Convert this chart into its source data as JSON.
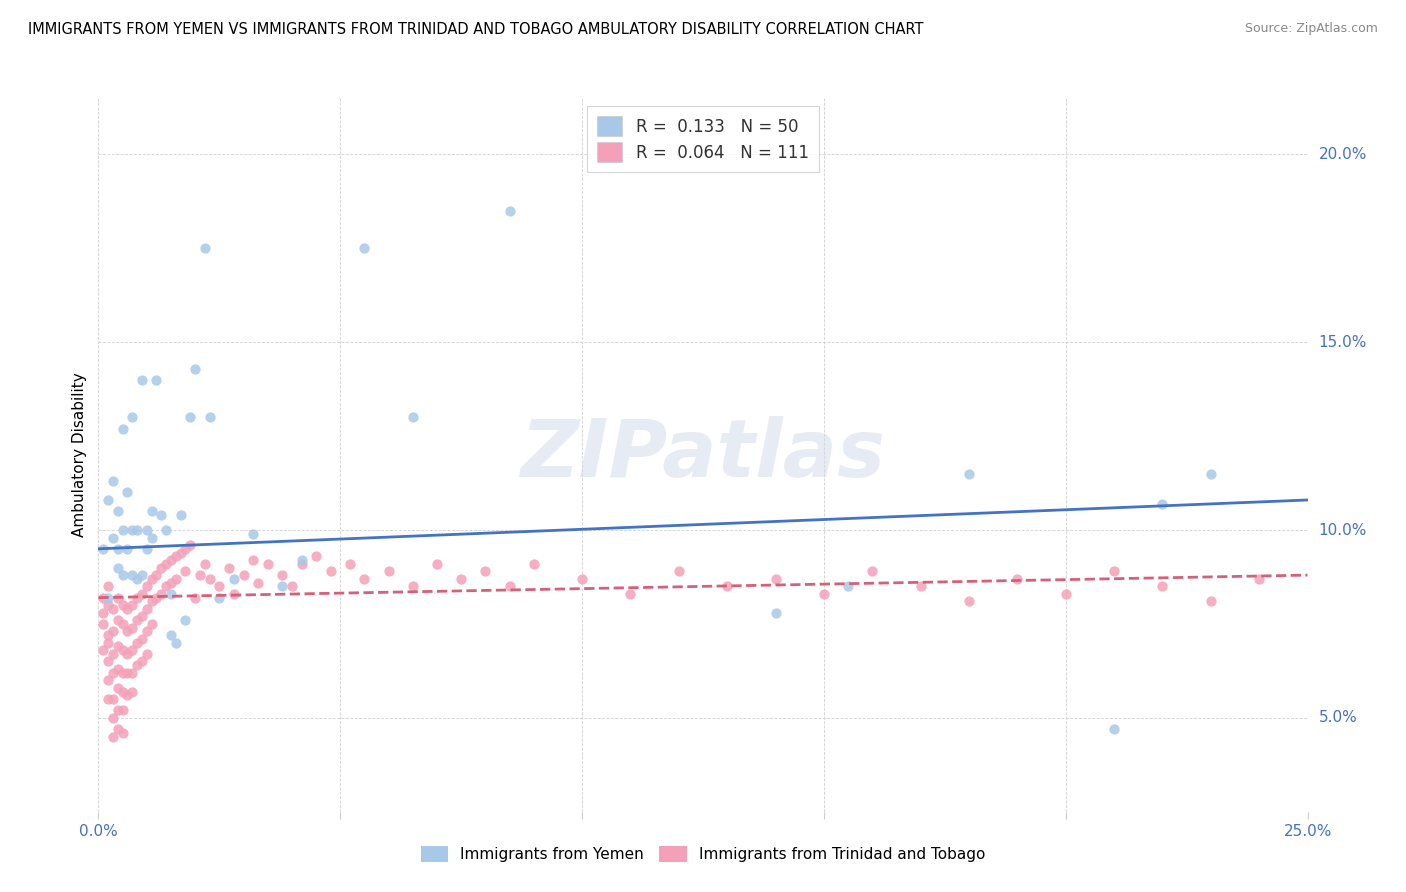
{
  "title": "IMMIGRANTS FROM YEMEN VS IMMIGRANTS FROM TRINIDAD AND TOBAGO AMBULATORY DISABILITY CORRELATION CHART",
  "source": "Source: ZipAtlas.com",
  "ylabel": "Ambulatory Disability",
  "xlim": [
    0.0,
    0.25
  ],
  "ylim": [
    0.025,
    0.215
  ],
  "legend_r1": "R =  0.133",
  "legend_n1": "N = 50",
  "legend_r2": "R =  0.064",
  "legend_n2": "N = 111",
  "color_blue": "#a8c8e8",
  "color_pink": "#f4a0b8",
  "line_blue": "#4472c4",
  "line_pink": "#d4607a",
  "watermark": "ZIPatlas",
  "yemen_x": [
    0.001,
    0.002,
    0.002,
    0.003,
    0.003,
    0.004,
    0.004,
    0.004,
    0.005,
    0.005,
    0.005,
    0.006,
    0.006,
    0.007,
    0.007,
    0.007,
    0.008,
    0.008,
    0.009,
    0.009,
    0.01,
    0.01,
    0.011,
    0.011,
    0.012,
    0.013,
    0.014,
    0.015,
    0.015,
    0.016,
    0.017,
    0.018,
    0.019,
    0.02,
    0.022,
    0.023,
    0.025,
    0.028,
    0.032,
    0.038,
    0.042,
    0.055,
    0.065,
    0.085,
    0.14,
    0.155,
    0.18,
    0.21,
    0.22,
    0.23
  ],
  "yemen_y": [
    0.095,
    0.082,
    0.108,
    0.098,
    0.113,
    0.09,
    0.105,
    0.095,
    0.088,
    0.1,
    0.127,
    0.095,
    0.11,
    0.13,
    0.088,
    0.1,
    0.087,
    0.1,
    0.14,
    0.088,
    0.095,
    0.1,
    0.098,
    0.105,
    0.14,
    0.104,
    0.1,
    0.072,
    0.083,
    0.07,
    0.104,
    0.076,
    0.13,
    0.143,
    0.175,
    0.13,
    0.082,
    0.087,
    0.099,
    0.085,
    0.092,
    0.175,
    0.13,
    0.185,
    0.078,
    0.085,
    0.115,
    0.047,
    0.107,
    0.115
  ],
  "tt_x": [
    0.001,
    0.001,
    0.001,
    0.001,
    0.002,
    0.002,
    0.002,
    0.002,
    0.002,
    0.002,
    0.002,
    0.003,
    0.003,
    0.003,
    0.003,
    0.003,
    0.003,
    0.003,
    0.004,
    0.004,
    0.004,
    0.004,
    0.004,
    0.004,
    0.004,
    0.005,
    0.005,
    0.005,
    0.005,
    0.005,
    0.005,
    0.005,
    0.006,
    0.006,
    0.006,
    0.006,
    0.006,
    0.007,
    0.007,
    0.007,
    0.007,
    0.007,
    0.008,
    0.008,
    0.008,
    0.008,
    0.009,
    0.009,
    0.009,
    0.009,
    0.01,
    0.01,
    0.01,
    0.01,
    0.011,
    0.011,
    0.011,
    0.012,
    0.012,
    0.013,
    0.013,
    0.014,
    0.014,
    0.015,
    0.015,
    0.016,
    0.016,
    0.017,
    0.018,
    0.018,
    0.019,
    0.02,
    0.021,
    0.022,
    0.023,
    0.025,
    0.027,
    0.028,
    0.03,
    0.032,
    0.033,
    0.035,
    0.038,
    0.04,
    0.042,
    0.045,
    0.048,
    0.052,
    0.055,
    0.06,
    0.065,
    0.07,
    0.075,
    0.08,
    0.085,
    0.09,
    0.1,
    0.11,
    0.12,
    0.13,
    0.14,
    0.15,
    0.16,
    0.17,
    0.18,
    0.19,
    0.2,
    0.21,
    0.22,
    0.23,
    0.24
  ],
  "tt_y": [
    0.082,
    0.075,
    0.068,
    0.078,
    0.085,
    0.07,
    0.065,
    0.08,
    0.072,
    0.06,
    0.055,
    0.079,
    0.073,
    0.067,
    0.062,
    0.055,
    0.05,
    0.045,
    0.082,
    0.076,
    0.069,
    0.063,
    0.058,
    0.052,
    0.047,
    0.08,
    0.075,
    0.068,
    0.062,
    0.057,
    0.052,
    0.046,
    0.079,
    0.073,
    0.067,
    0.062,
    0.056,
    0.08,
    0.074,
    0.068,
    0.062,
    0.057,
    0.082,
    0.076,
    0.07,
    0.064,
    0.083,
    0.077,
    0.071,
    0.065,
    0.085,
    0.079,
    0.073,
    0.067,
    0.087,
    0.081,
    0.075,
    0.088,
    0.082,
    0.09,
    0.083,
    0.091,
    0.085,
    0.092,
    0.086,
    0.093,
    0.087,
    0.094,
    0.095,
    0.089,
    0.096,
    0.082,
    0.088,
    0.091,
    0.087,
    0.085,
    0.09,
    0.083,
    0.088,
    0.092,
    0.086,
    0.091,
    0.088,
    0.085,
    0.091,
    0.093,
    0.089,
    0.091,
    0.087,
    0.089,
    0.085,
    0.091,
    0.087,
    0.089,
    0.085,
    0.091,
    0.087,
    0.083,
    0.089,
    0.085,
    0.087,
    0.083,
    0.089,
    0.085,
    0.081,
    0.087,
    0.083,
    0.089,
    0.085,
    0.081,
    0.087
  ]
}
